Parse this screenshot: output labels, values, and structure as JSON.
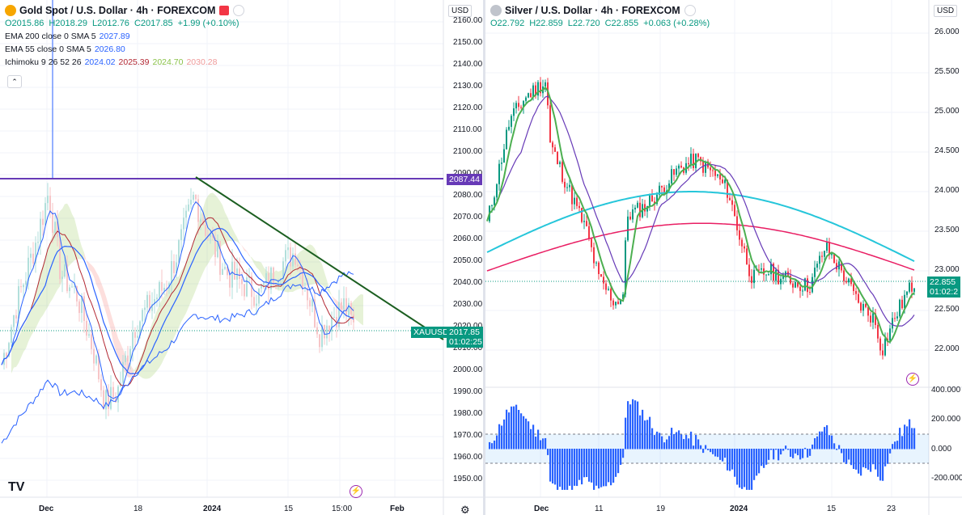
{
  "left": {
    "title": "Gold Spot / U.S. Dollar · 4h · FOREXCOM",
    "ohlc": {
      "o": "O2015.86",
      "h": "H2018.29",
      "l": "L2012.76",
      "c": "C2017.85",
      "chg": "+1.99 (+0.10%)"
    },
    "indicators": [
      {
        "label": "EMA 200 close 0 SMA 5",
        "values": [
          "2027.89"
        ],
        "colors": [
          "#2962ff"
        ]
      },
      {
        "label": "EMA 55 close 0 SMA 5",
        "values": [
          "2026.80"
        ],
        "colors": [
          "#2962ff"
        ]
      },
      {
        "label": "Ichimoku 9 26 52 26",
        "values": [
          "2024.02",
          "2025.39",
          "2024.70",
          "2030.28"
        ],
        "colors": [
          "#2962ff",
          "#b22833",
          "#8bc34a",
          "#ef9a9a"
        ]
      }
    ],
    "currency": "USD",
    "price_axis": [
      "2160.00",
      "2150.00",
      "2140.00",
      "2130.00",
      "2120.00",
      "2110.00",
      "2100.00",
      "2090.00",
      "2080.00",
      "2070.00",
      "2060.00",
      "2050.00",
      "2040.00",
      "2030.00",
      "2020.00",
      "2010.00",
      "2000.00",
      "1990.00",
      "1980.00",
      "1970.00",
      "1960.00",
      "1950.00"
    ],
    "time_axis": [
      "Dec",
      "18",
      "2024",
      "15",
      "15:00",
      "Feb"
    ],
    "level_badge": "2087.44",
    "symbol_badge": "XAUUSD",
    "price_badge": "2017.85",
    "countdown": "01:02:25",
    "logo": "TV",
    "colors": {
      "level": "#673ab7",
      "trend": "#1b5e20",
      "symbol": "#089981"
    }
  },
  "right": {
    "title": "Silver / U.S. Dollar · 4h · FOREXCOM",
    "ohlc": {
      "o": "O22.792",
      "h": "H22.859",
      "l": "L22.720",
      "c": "C22.855",
      "chg": "+0.063 (+0.28%)"
    },
    "currency": "USD",
    "price_axis": [
      "26.000",
      "25.500",
      "25.000",
      "24.500",
      "24.000",
      "23.500",
      "23.000",
      "22.500",
      "22.000"
    ],
    "osc_axis": [
      "400.000",
      "200.000",
      "0.000",
      "-200.000"
    ],
    "time_axis": [
      "Dec",
      "11",
      "19",
      "2024",
      "15",
      "23"
    ],
    "price_badge": "22.855",
    "countdown": "01:02:2",
    "colors": {
      "ema_red": "#e91e63",
      "ema_cyan": "#26c6da",
      "ema_purple": "#673ab7",
      "ema_green": "#4caf50",
      "hist": "#2962ff"
    }
  }
}
